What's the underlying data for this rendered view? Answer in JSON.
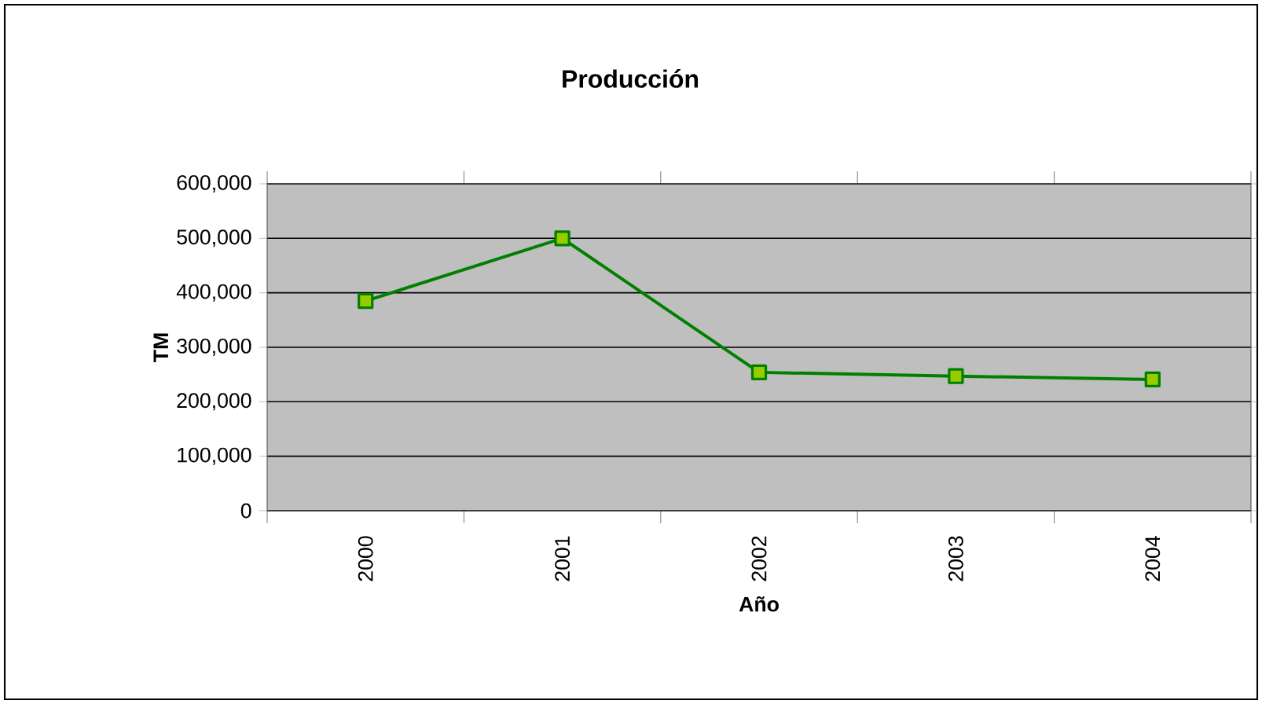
{
  "chart_data": {
    "type": "line",
    "title": "Producción",
    "xlabel": "Año",
    "ylabel": "TM",
    "categories": [
      "2000",
      "2001",
      "2002",
      "2003",
      "2004"
    ],
    "series": [
      {
        "color": "#008000",
        "values": [
          385000,
          500000,
          254000,
          247000,
          241000
        ]
      }
    ],
    "marker": "square",
    "ylim": [
      0,
      600000
    ],
    "yticks": [
      {
        "value": 0,
        "label": "0"
      },
      {
        "value": 100000,
        "label": "100,000"
      },
      {
        "value": 200000,
        "label": "200,000"
      },
      {
        "value": 300000,
        "label": "300,000"
      },
      {
        "value": 400000,
        "label": "400,000"
      },
      {
        "value": 500000,
        "label": "500,000"
      },
      {
        "value": 600000,
        "label": "600,000"
      }
    ],
    "grid": "y"
  }
}
